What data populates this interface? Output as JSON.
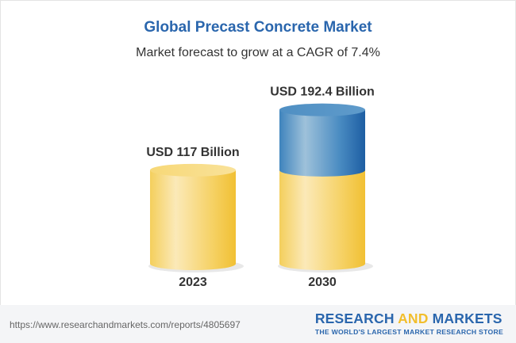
{
  "title": "Global Precast Concrete Market",
  "subtitle": "Market forecast to grow at a CAGR of 7.4%",
  "chart_data": {
    "type": "bar",
    "style": "3d-cylinder",
    "categories": [
      "2023",
      "2030"
    ],
    "values": [
      117,
      192.4
    ],
    "data_labels": [
      "USD 117 Billion",
      "USD 192.4 Billion"
    ],
    "unit": "USD Billion",
    "cagr": "7.4%",
    "colors": {
      "base": "#f5c842",
      "growth": "#2f76b5"
    }
  },
  "footer": {
    "url": "https://www.researchandmarkets.com/reports/4805697",
    "logo_word1": "RESEARCH ",
    "logo_word2": "AND",
    "logo_word3": " MARKETS",
    "tagline": "THE WORLD'S LARGEST MARKET RESEARCH STORE"
  }
}
